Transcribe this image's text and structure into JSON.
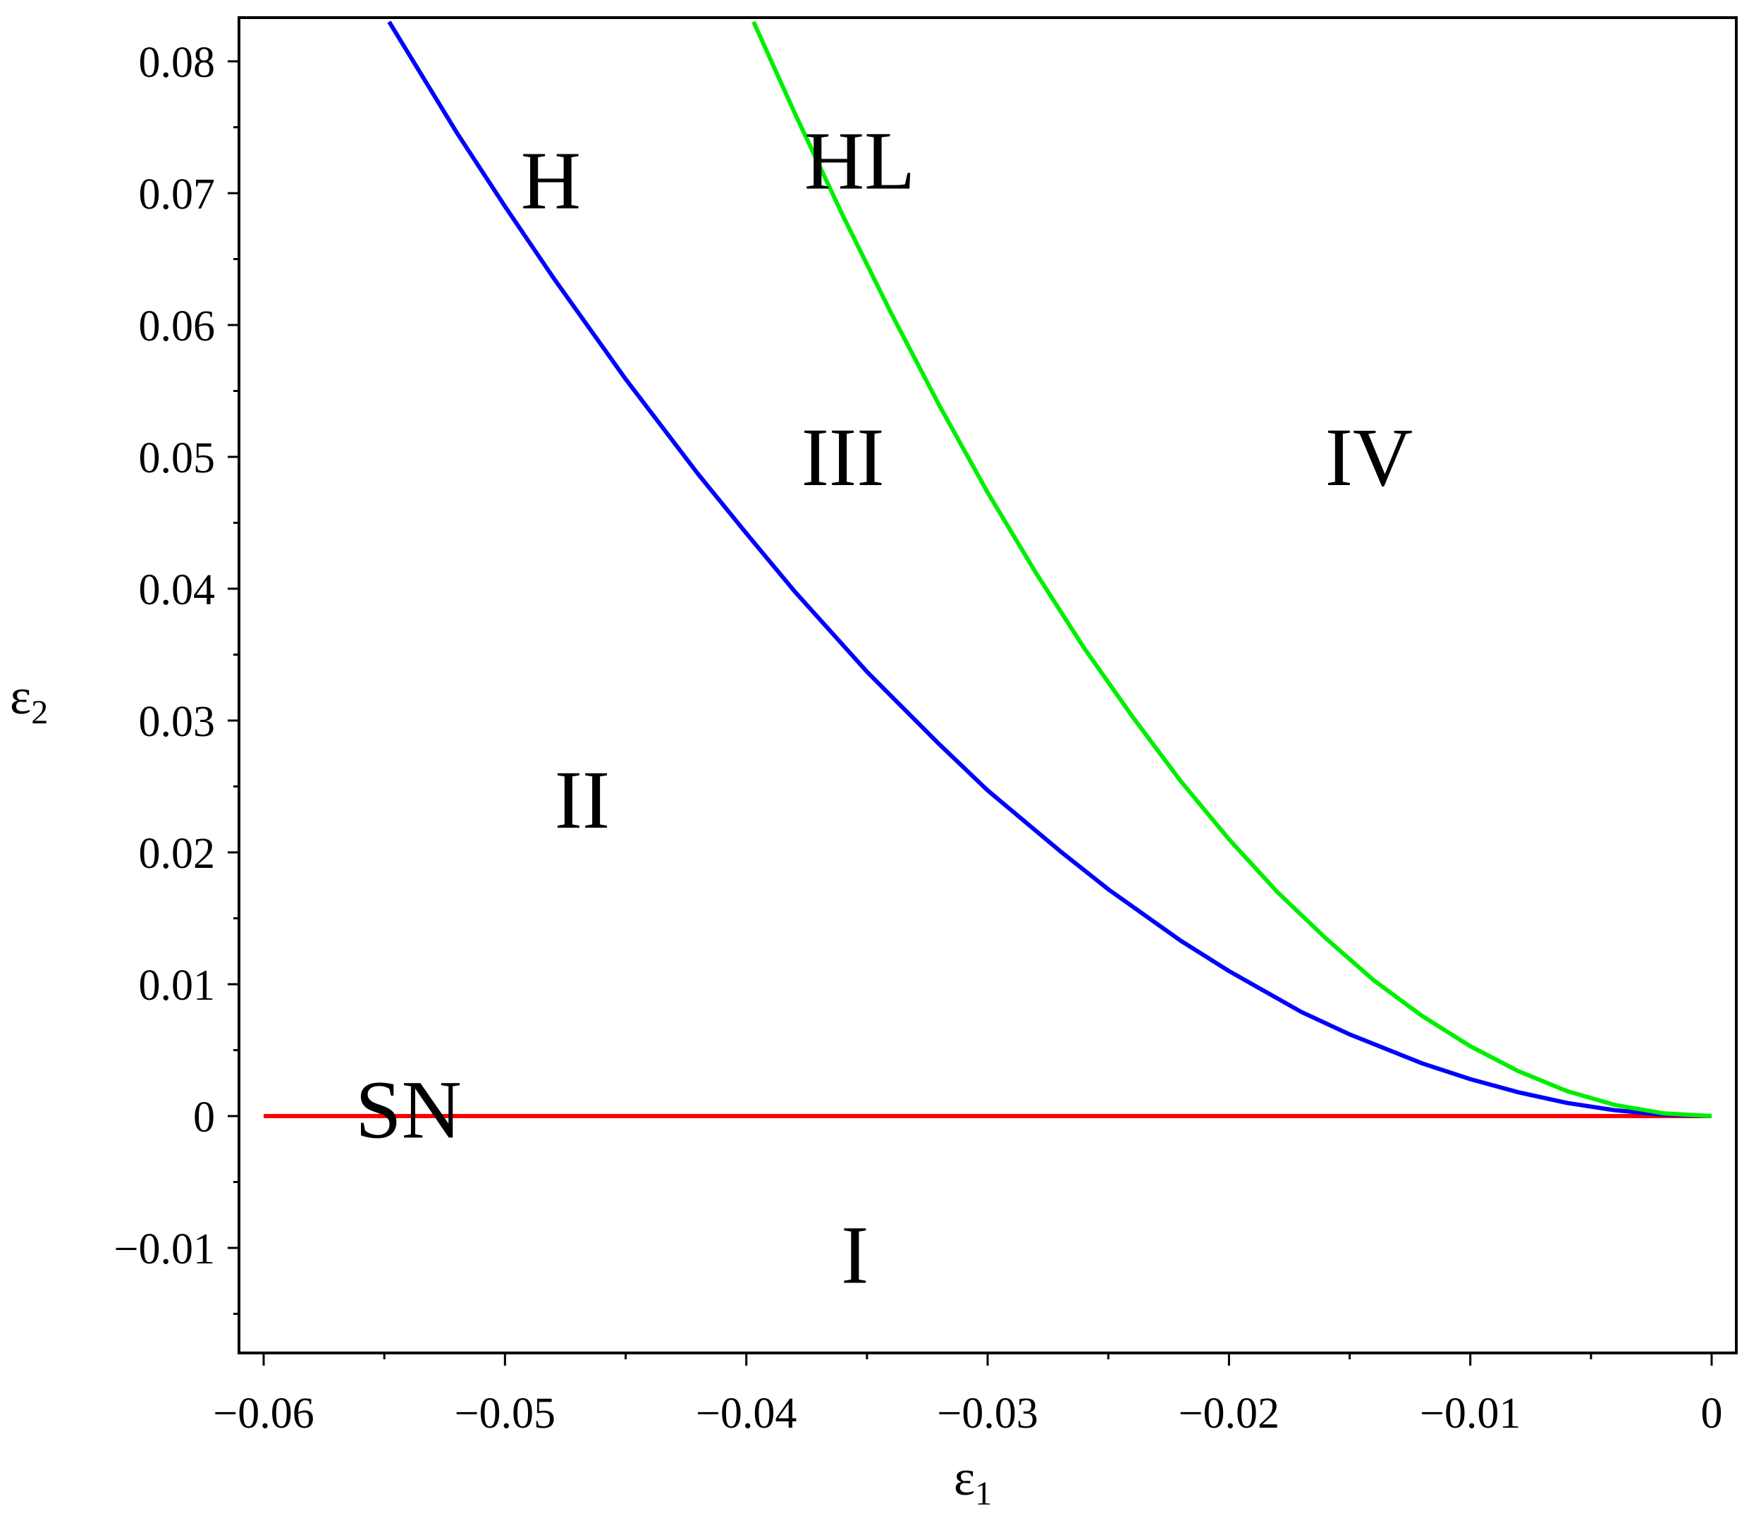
{
  "chart_data": {
    "type": "line",
    "xlabel": "ε",
    "xlabel_sub": "1",
    "ylabel": "ε",
    "ylabel_sub": "2",
    "xlim": [
      -0.06,
      0
    ],
    "ylim": [
      -0.018,
      0.083
    ],
    "x_ticks": [
      -0.06,
      -0.05,
      -0.04,
      -0.03,
      -0.02,
      -0.01,
      0
    ],
    "x_tick_labels": [
      "−0.06",
      "−0.05",
      "−0.04",
      "−0.03",
      "−0.02",
      "−0.01",
      "0"
    ],
    "y_ticks": [
      -0.01,
      0,
      0.01,
      0.02,
      0.03,
      0.04,
      0.05,
      0.06,
      0.07,
      0.08
    ],
    "y_tick_labels": [
      "−0.01",
      "0",
      "0.01",
      "0.02",
      "0.03",
      "0.04",
      "0.05",
      "0.06",
      "0.07",
      "0.08"
    ],
    "grid": false,
    "legend": "none",
    "series": [
      {
        "color": "#ff0000",
        "x": [
          -0.06,
          0
        ],
        "y": [
          0,
          0
        ]
      },
      {
        "color": "#0000ff",
        "x": [
          -0.0548,
          -0.052,
          -0.05,
          -0.048,
          -0.045,
          -0.042,
          -0.04,
          -0.038,
          -0.035,
          -0.032,
          -0.03,
          -0.027,
          -0.025,
          -0.022,
          -0.02,
          -0.017,
          -0.015,
          -0.012,
          -0.01,
          -0.008,
          -0.006,
          -0.004,
          -0.002,
          0
        ],
        "y": [
          0.083,
          0.0746,
          0.069,
          0.0636,
          0.0559,
          0.0487,
          0.0442,
          0.0398,
          0.0337,
          0.0282,
          0.0247,
          0.0201,
          0.0172,
          0.0133,
          0.011,
          0.0079,
          0.0062,
          0.004,
          0.0028,
          0.0018,
          0.001,
          0.00044,
          0.00011,
          0
        ]
      },
      {
        "color": "#00ee00",
        "x": [
          -0.0397,
          -0.038,
          -0.036,
          -0.034,
          -0.032,
          -0.03,
          -0.028,
          -0.026,
          -0.024,
          -0.022,
          -0.02,
          -0.018,
          -0.016,
          -0.014,
          -0.012,
          -0.01,
          -0.008,
          -0.006,
          -0.004,
          -0.002,
          0
        ],
        "y": [
          0.083,
          0.0761,
          0.0683,
          0.0609,
          0.0539,
          0.0473,
          0.0412,
          0.0355,
          0.0303,
          0.0254,
          0.021,
          0.017,
          0.0135,
          0.0103,
          0.0076,
          0.0053,
          0.0034,
          0.0019,
          0.00084,
          0.00021,
          0
        ]
      }
    ],
    "annotations": [
      {
        "text": "H",
        "x": -0.0481,
        "y": 0.071
      },
      {
        "text": "HL",
        "x": -0.0353,
        "y": 0.0725
      },
      {
        "text": "III",
        "x": -0.036,
        "y": 0.05
      },
      {
        "text": "IV",
        "x": -0.0142,
        "y": 0.05
      },
      {
        "text": "II",
        "x": -0.0468,
        "y": 0.024
      },
      {
        "text": "SN",
        "x": -0.054,
        "y": 0.0005
      },
      {
        "text": "I",
        "x": -0.0355,
        "y": -0.0105
      }
    ]
  }
}
